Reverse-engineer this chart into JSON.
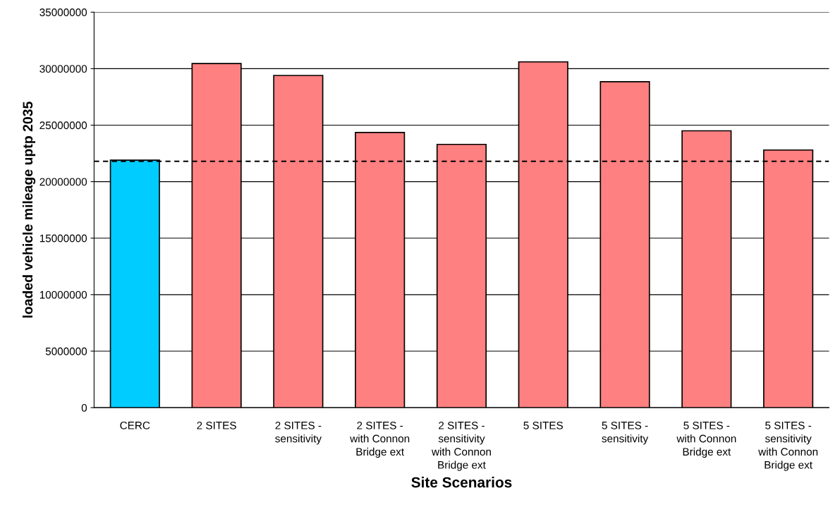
{
  "chart_data": {
    "type": "bar",
    "xlabel": "Site Scenarios",
    "ylabel": "loaded vehicle mileage uptp 2035",
    "categories": [
      "CERC",
      "2 SITES",
      "2 SITES -\nsensitivity",
      "2 SITES -\nwith Connon\nBridge ext",
      "2 SITES -\nsensitivity\nwith Connon\nBridge ext",
      "5 SITES",
      "5 SITES -\nsensitivity",
      "5 SITES -\nwith Connon\nBridge ext",
      "5 SITES -\nsensitivity\nwith Connon\nBridge ext"
    ],
    "values": [
      21900000,
      30450000,
      29400000,
      24350000,
      23300000,
      30600000,
      28850000,
      24500000,
      22800000
    ],
    "colors": [
      "#00ccff",
      "#ff8080",
      "#ff8080",
      "#ff8080",
      "#ff8080",
      "#ff8080",
      "#ff8080",
      "#ff8080",
      "#ff8080"
    ],
    "ylim": [
      0,
      35000000
    ],
    "yticks": [
      0,
      5000000,
      10000000,
      15000000,
      20000000,
      25000000,
      30000000,
      35000000
    ],
    "ref_lines": [
      {
        "axis": "y",
        "value": 21800000,
        "label": null,
        "color": "#000000",
        "line_style": "dashed"
      }
    ],
    "grid": "y",
    "legend": false
  }
}
